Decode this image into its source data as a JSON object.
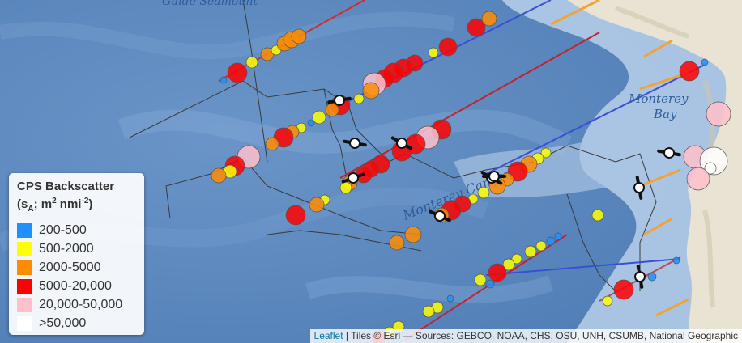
{
  "map": {
    "place_labels": {
      "seamount": "Guide Seamount",
      "bay_line1": "Monterey",
      "bay_line2": "Bay",
      "canyon": "Monterey Canyon"
    },
    "colors": {
      "ocean": "#5b87bd",
      "shelf": "#b9d0ea",
      "land": "#e8e3d2",
      "track": "#3a3a3a"
    }
  },
  "legend": {
    "title": "CPS Backscatter",
    "subtitle_prefix": "(s",
    "subtitle_sub": "A",
    "subtitle_mid": "; m",
    "subtitle_sup1": "2",
    "subtitle_mid2": " nmi",
    "subtitle_sup2": "-2",
    "subtitle_suffix": ")",
    "items": [
      {
        "label": "200-500",
        "color": "#1e90ff"
      },
      {
        "label": "500-2000",
        "color": "#ffff00"
      },
      {
        "label": "2000-5000",
        "color": "#ff8c00"
      },
      {
        "label": "5000-20,000",
        "color": "#ff0000"
      },
      {
        "label": "20,000-50,000",
        "color": "#ffc0cb"
      },
      {
        "label": ">50,000",
        "color": "#ffffff"
      }
    ]
  },
  "attribution": {
    "leaflet": "Leaflet",
    "separator": " | ",
    "text": "Tiles © Esri — Sources: GEBCO, NOAA, CHS, OSU, UNH, CSUMB, National Geographic"
  }
}
